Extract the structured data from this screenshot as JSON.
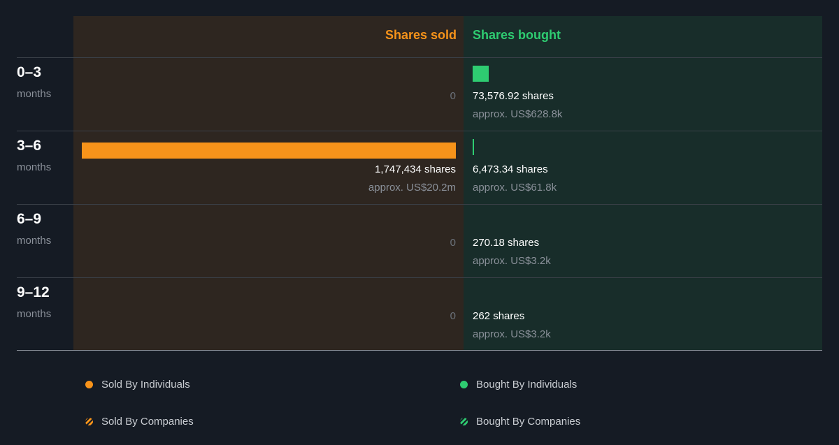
{
  "header": {
    "sold_label": "Shares sold",
    "bought_label": "Shares bought"
  },
  "colors": {
    "sold": "#f7931a",
    "bought": "#2ecc71",
    "background": "#151b24"
  },
  "rows": [
    {
      "range": "0–3",
      "unit": "months",
      "sold_zero": "0",
      "bought_shares": "73,576.92 shares",
      "bought_value": "approx. US$628.8k"
    },
    {
      "range": "3–6",
      "unit": "months",
      "sold_shares": "1,747,434 shares",
      "sold_value": "approx. US$20.2m",
      "bought_shares": "6,473.34 shares",
      "bought_value": "approx. US$61.8k"
    },
    {
      "range": "6–9",
      "unit": "months",
      "sold_zero": "0",
      "bought_shares": "270.18 shares",
      "bought_value": "approx. US$3.2k"
    },
    {
      "range": "9–12",
      "unit": "months",
      "sold_zero": "0",
      "bought_shares": "262 shares",
      "bought_value": "approx. US$3.2k"
    }
  ],
  "legend": [
    {
      "label": "Sold By Individuals",
      "icon": "orange-dot-icon"
    },
    {
      "label": "Bought By Individuals",
      "icon": "green-dot-icon"
    },
    {
      "label": "Sold By Companies",
      "icon": "orange-striped-dot-icon"
    },
    {
      "label": "Bought By Companies",
      "icon": "green-striped-dot-icon"
    }
  ],
  "chart_data": {
    "type": "bar",
    "categories": [
      "0–3 months",
      "3–6 months",
      "6–9 months",
      "9–12 months"
    ],
    "series": [
      {
        "name": "Shares sold",
        "values": [
          0,
          1747434,
          0,
          0
        ]
      },
      {
        "name": "Shares bought",
        "values": [
          73576.92,
          6473.34,
          270.18,
          262
        ]
      }
    ],
    "legend": [
      "Sold By Individuals",
      "Bought By Individuals",
      "Sold By Companies",
      "Bought By Companies"
    ]
  }
}
